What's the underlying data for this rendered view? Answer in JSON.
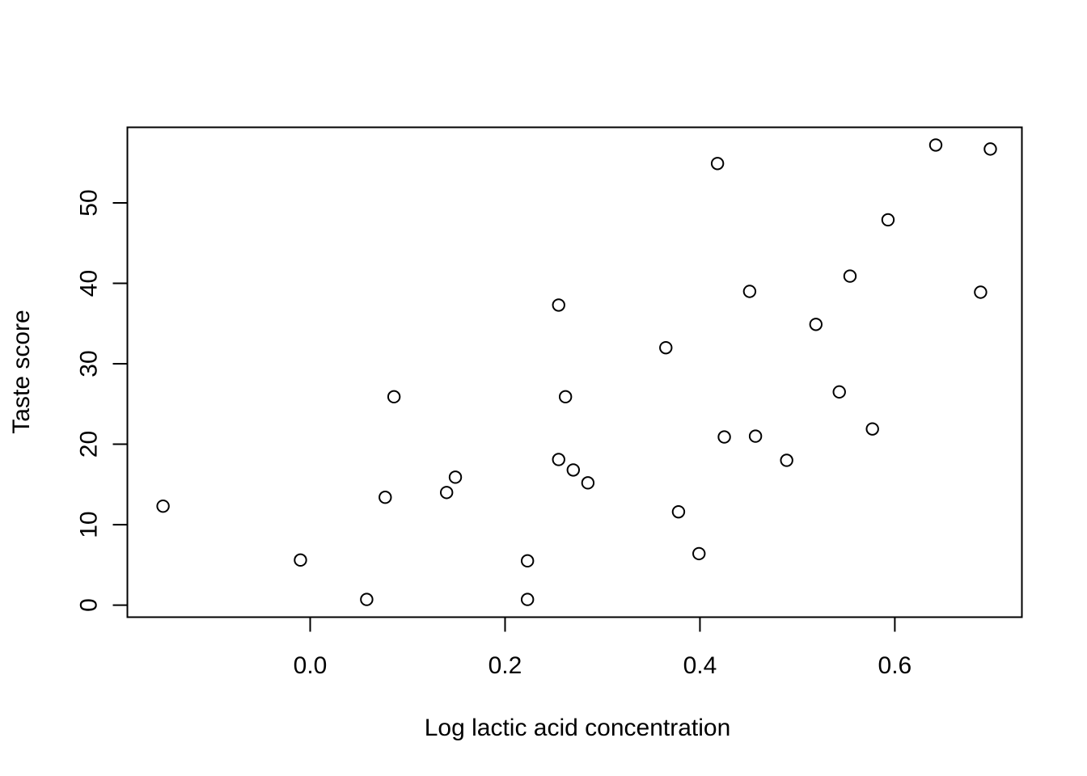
{
  "chart_data": {
    "type": "scatter",
    "title": "",
    "xlabel": "Log lactic acid concentration",
    "ylabel": "Taste score",
    "xlim": [
      -0.1876,
      0.7304
    ],
    "ylim": [
      -1.5,
      59.4
    ],
    "xticks": [
      0.0,
      0.2,
      0.4,
      0.6
    ],
    "xtick_labels": [
      "0.0",
      "0.2",
      "0.4",
      "0.6"
    ],
    "yticks": [
      0,
      10,
      20,
      30,
      40,
      50
    ],
    "ytick_labels": [
      "0",
      "10",
      "20",
      "30",
      "40",
      "50"
    ],
    "grid": false,
    "legend": "none",
    "marker": "open-circle",
    "color": "#000000",
    "points": [
      {
        "x": -0.151,
        "y": 12.3
      },
      {
        "x": -0.01,
        "y": 5.6
      },
      {
        "x": 0.058,
        "y": 0.7
      },
      {
        "x": 0.077,
        "y": 13.4
      },
      {
        "x": 0.086,
        "y": 25.9
      },
      {
        "x": 0.14,
        "y": 14.0
      },
      {
        "x": 0.149,
        "y": 15.9
      },
      {
        "x": 0.223,
        "y": 5.5
      },
      {
        "x": 0.223,
        "y": 0.7
      },
      {
        "x": 0.255,
        "y": 37.3
      },
      {
        "x": 0.255,
        "y": 18.1
      },
      {
        "x": 0.262,
        "y": 25.9
      },
      {
        "x": 0.27,
        "y": 16.8
      },
      {
        "x": 0.285,
        "y": 15.2
      },
      {
        "x": 0.365,
        "y": 32.0
      },
      {
        "x": 0.378,
        "y": 11.6
      },
      {
        "x": 0.399,
        "y": 6.4
      },
      {
        "x": 0.418,
        "y": 54.9
      },
      {
        "x": 0.425,
        "y": 20.9
      },
      {
        "x": 0.451,
        "y": 39.0
      },
      {
        "x": 0.457,
        "y": 21.0
      },
      {
        "x": 0.489,
        "y": 18.0
      },
      {
        "x": 0.519,
        "y": 34.9
      },
      {
        "x": 0.543,
        "y": 26.5
      },
      {
        "x": 0.554,
        "y": 40.9
      },
      {
        "x": 0.577,
        "y": 21.9
      },
      {
        "x": 0.593,
        "y": 47.9
      },
      {
        "x": 0.642,
        "y": 57.2
      },
      {
        "x": 0.688,
        "y": 38.9
      },
      {
        "x": 0.698,
        "y": 56.7
      }
    ]
  }
}
